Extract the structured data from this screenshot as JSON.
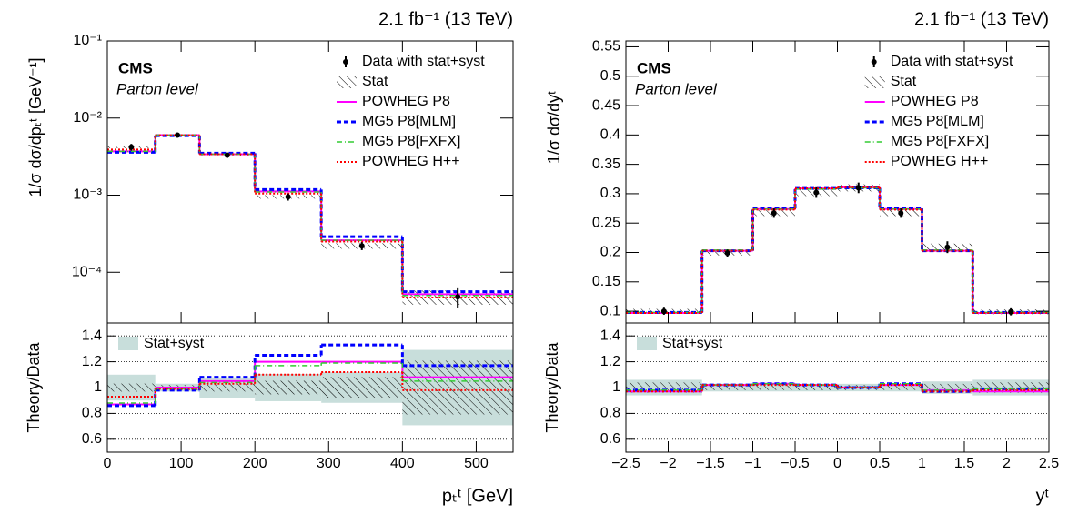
{
  "chart_data": [
    {
      "type": "step",
      "title": "2.1 fb⁻¹ (13 TeV)",
      "xlabel": "pₜᵗ [GeV]",
      "annotations": [
        "CMS",
        "Parton level"
      ],
      "bins": [
        0,
        65,
        125,
        200,
        290,
        400,
        550
      ],
      "xlim": [
        0,
        550
      ],
      "xticks": [
        0,
        100,
        200,
        300,
        400,
        500
      ],
      "main": {
        "ylabel": "1/σ dσ/dpₜᵗ [GeV⁻¹]",
        "log": true,
        "ylim": [
          2.2e-05,
          0.1
        ],
        "yticks": [
          {
            "value": 0.0001,
            "label": "10⁻⁴"
          },
          {
            "value": 0.001,
            "label": "10⁻³"
          },
          {
            "value": 0.01,
            "label": "10⁻²"
          },
          {
            "value": 0.1,
            "label": "10⁻¹"
          }
        ],
        "stat_label": "Stat",
        "data": {
          "name": "Data with stat+syst",
          "color": "#000000",
          "values": [
            0.0042,
            0.006,
            0.0033,
            0.00095,
            0.00022,
            4.8e-05
          ],
          "errors": [
            0.00042,
            0.00018,
            0.00026,
            0.0001,
            2.6e-05,
            1.4e-05
          ],
          "stat_errors": [
            0.00013,
            0.00012,
            0.0001,
            5e-05,
            1.8e-05,
            1e-05
          ]
        },
        "series": [
          {
            "name": "POWHEG P8",
            "color": "#ff00ff",
            "style": "solid",
            "values": [
              0.0037,
              0.006,
              0.0034,
              0.00112,
              0.00026,
              5.2e-05
            ]
          },
          {
            "name": "MG5 P8[MLM]",
            "color": "#0000ff",
            "style": "dashed",
            "values": [
              0.0036,
              0.0059,
              0.0035,
              0.00118,
              0.00029,
              5.6e-05
            ]
          },
          {
            "name": "MG5 P8[FXFX]",
            "color": "#33cc33",
            "style": "dashdot",
            "values": [
              0.0037,
              0.006,
              0.0034,
              0.0011,
              0.00026,
              5e-05
            ]
          },
          {
            "name": "POWHEG H++",
            "color": "#ff0000",
            "style": "dotted",
            "values": [
              0.0039,
              0.006,
              0.0034,
              0.00105,
              0.00025,
              4.7e-05
            ]
          }
        ]
      },
      "ratio": {
        "ylabel": "Theory/Data",
        "ylim": [
          0.5,
          1.5
        ],
        "yticks": [
          0.6,
          0.8,
          1,
          1.2,
          1.4
        ],
        "band_label": "Stat+syst",
        "band_color": "#c8dedb",
        "series": [
          {
            "color": "#ff00ff",
            "style": "solid",
            "values": [
              0.87,
              1.0,
              1.05,
              1.2,
              1.2,
              1.08
            ]
          },
          {
            "color": "#0000ff",
            "style": "dashed",
            "values": [
              0.86,
              0.98,
              1.08,
              1.25,
              1.33,
              1.17
            ]
          },
          {
            "color": "#33cc33",
            "style": "dashdot",
            "values": [
              0.88,
              0.99,
              1.04,
              1.17,
              1.19,
              1.05
            ]
          },
          {
            "color": "#ff0000",
            "style": "dotted",
            "values": [
              0.93,
              0.99,
              1.03,
              1.1,
              1.12,
              0.98
            ]
          }
        ]
      }
    },
    {
      "type": "step",
      "title": "2.1 fb⁻¹ (13 TeV)",
      "xlabel": "yᵗ",
      "annotations": [
        "CMS",
        "Parton level"
      ],
      "bins": [
        -2.5,
        -1.6,
        -1,
        -0.5,
        0,
        0.5,
        1,
        1.6,
        2.5
      ],
      "xlim": [
        -2.5,
        2.5
      ],
      "xticks": [
        {
          "value": -2.5,
          "label": "−2.5"
        },
        {
          "value": -2,
          "label": "−2"
        },
        {
          "value": -1.5,
          "label": "−1.5"
        },
        {
          "value": -1,
          "label": "−1"
        },
        {
          "value": -0.5,
          "label": "−0.5"
        },
        0,
        0.5,
        1,
        1.5,
        2,
        2.5
      ],
      "main": {
        "ylabel": "1/σ dσ/dyᵗ",
        "log": false,
        "ylim": [
          0.08,
          0.56
        ],
        "yticks": [
          0.1,
          0.15,
          0.2,
          0.25,
          0.3,
          0.35,
          0.4,
          0.45,
          0.5,
          0.55
        ],
        "stat_label": "Stat",
        "data": {
          "name": "Data with stat+syst",
          "color": "#000000",
          "values": [
            0.1,
            0.199,
            0.267,
            0.302,
            0.31,
            0.267,
            0.209,
            0.099
          ],
          "errors": [
            0.006,
            0.006,
            0.008,
            0.009,
            0.009,
            0.008,
            0.01,
            0.006
          ],
          "stat_errors": [
            0.004,
            0.004,
            0.005,
            0.006,
            0.006,
            0.005,
            0.006,
            0.004
          ]
        },
        "series": [
          {
            "name": "POWHEG P8",
            "color": "#ff00ff",
            "style": "solid",
            "values": [
              0.097,
              0.203,
              0.274,
              0.309,
              0.311,
              0.274,
              0.203,
              0.097
            ]
          },
          {
            "name": "MG5 P8[MLM]",
            "color": "#0000ff",
            "style": "dashed",
            "values": [
              0.098,
              0.203,
              0.275,
              0.309,
              0.31,
              0.275,
              0.203,
              0.098
            ]
          },
          {
            "name": "MG5 P8[FXFX]",
            "color": "#33cc33",
            "style": "dashdot",
            "values": [
              0.098,
              0.204,
              0.274,
              0.308,
              0.31,
              0.274,
              0.204,
              0.098
            ]
          },
          {
            "name": "POWHEG H++",
            "color": "#ff0000",
            "style": "dotted",
            "values": [
              0.097,
              0.203,
              0.273,
              0.309,
              0.311,
              0.273,
              0.203,
              0.097
            ]
          }
        ]
      },
      "ratio": {
        "ylabel": "Theory/Data",
        "ylim": [
          0.5,
          1.5
        ],
        "yticks": [
          0.6,
          0.8,
          1,
          1.2,
          1.4
        ],
        "band_label": "Stat+syst",
        "band_color": "#c8dedb",
        "series": [
          {
            "color": "#ff00ff",
            "style": "solid",
            "values": [
              0.97,
              1.02,
              1.03,
              1.02,
              1.0,
              1.02,
              0.98,
              0.97
            ]
          },
          {
            "color": "#0000ff",
            "style": "dashed",
            "values": [
              0.98,
              1.02,
              1.03,
              1.02,
              1.0,
              1.03,
              0.97,
              0.99
            ]
          },
          {
            "color": "#33cc33",
            "style": "dashdot",
            "values": [
              0.98,
              1.02,
              1.03,
              1.02,
              1.0,
              1.03,
              0.98,
              0.99
            ]
          },
          {
            "color": "#ff0000",
            "style": "dotted",
            "values": [
              0.97,
              1.02,
              1.02,
              1.02,
              1.0,
              1.02,
              0.97,
              0.98
            ]
          }
        ]
      }
    }
  ]
}
